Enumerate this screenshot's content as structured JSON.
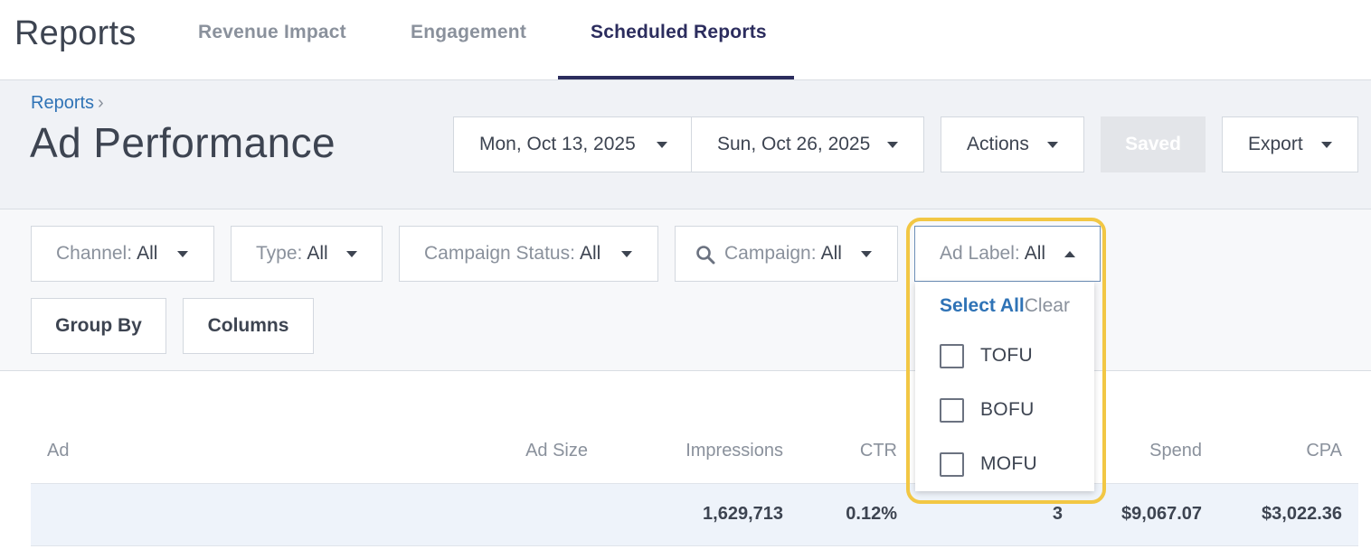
{
  "app": {
    "title": "Reports",
    "tabs": [
      "Revenue Impact",
      "Engagement",
      "Scheduled Reports"
    ],
    "active_tab": "Scheduled Reports"
  },
  "header": {
    "breadcrumb": "Reports",
    "breadcrumb_sep": "›",
    "page_title": "Ad Performance",
    "start_date": "Mon, Oct 13, 2025",
    "end_date": "Sun, Oct 26, 2025",
    "actions_label": "Actions",
    "saved_label": "Saved",
    "export_label": "Export"
  },
  "filters": {
    "channel": {
      "label": "Channel:",
      "value": "All"
    },
    "type": {
      "label": "Type:",
      "value": "All"
    },
    "campaign_status": {
      "label": "Campaign Status:",
      "value": "All"
    },
    "campaign": {
      "label": "Campaign:",
      "value": "All"
    },
    "ad_label": {
      "label": "Ad Label:",
      "value": "All"
    },
    "group_by": "Group By",
    "columns": "Columns"
  },
  "ad_label_dropdown": {
    "select_all": "Select All",
    "clear": "Clear",
    "options": [
      {
        "label": "TOFU",
        "checked": false
      },
      {
        "label": "BOFU",
        "checked": false
      },
      {
        "label": "MOFU",
        "checked": false
      }
    ]
  },
  "table": {
    "headers": {
      "ad": "Ad",
      "ad_size": "Ad Size",
      "impressions": "Impressions",
      "ctr": "CTR",
      "conversions": "",
      "spend": "Spend",
      "cpa": "CPA"
    },
    "totals": {
      "impressions": "1,629,713",
      "ctr": "0.12%",
      "conversions": "3",
      "spend": "$9,067.07",
      "cpa": "$3,022.36"
    }
  },
  "colors": {
    "accent": "#2c2d5e",
    "link": "#2f73b6",
    "highlight": "#f2c744"
  }
}
